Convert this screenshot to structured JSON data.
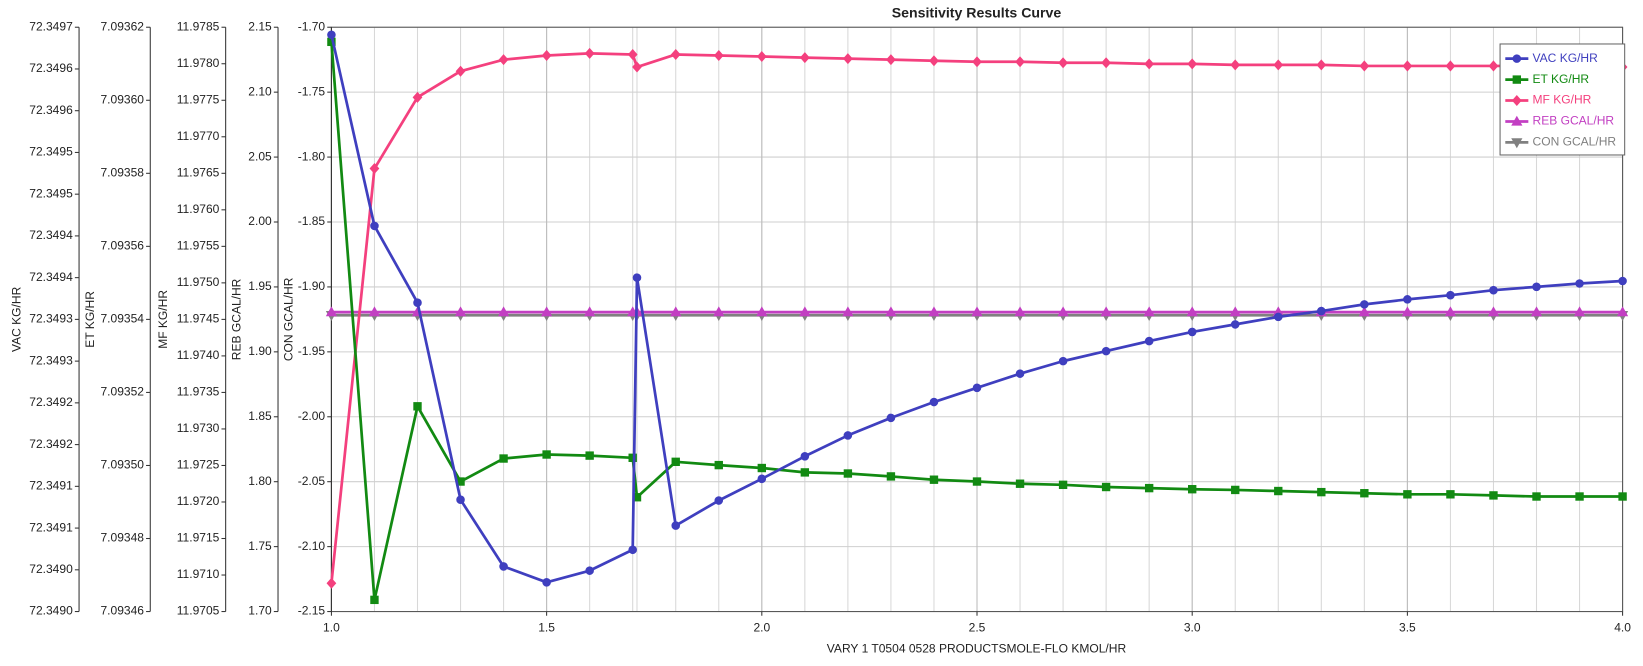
{
  "chart_data": {
    "type": "line",
    "title": "Sensitivity Results Curve",
    "xlabel": "VARY   1 T0504 0528 PRODUCTSMOLE-FLO KMOL/HR",
    "x": [
      1,
      1.1,
      1.2,
      1.3,
      1.4,
      1.5,
      1.6,
      1.7,
      1.71,
      1.8,
      1.9,
      2,
      2.1,
      2.2,
      2.3,
      2.4,
      2.5,
      2.6,
      2.7,
      2.8,
      2.9,
      3,
      3.1,
      3.2,
      3.3,
      3.4,
      3.5,
      3.6,
      3.7,
      3.8,
      3.9,
      4
    ],
    "xlim": [
      1,
      4
    ],
    "xticks": [
      {
        "value": 1,
        "label": "1.0"
      },
      1.5,
      {
        "value": 2,
        "label": "2.0"
      },
      2.5,
      {
        "value": 3,
        "label": "3.0"
      },
      3.5,
      {
        "value": 4,
        "label": "4.0"
      }
    ],
    "grid": true,
    "legend": "upper right",
    "series": [
      {
        "name": "VAC KG/HR",
        "color": "#3f3fbf",
        "marker": "circle",
        "ylim": [
          72.349,
          72.3497
        ],
        "yticks": [
          {
            "value": 72.349,
            "label": "72.3490"
          },
          {
            "value": 72.34905,
            "label": "72.3490"
          },
          {
            "value": 72.3491,
            "label": "72.3491"
          },
          {
            "value": 72.34915,
            "label": "72.3491"
          },
          {
            "value": 72.3492,
            "label": "72.3492"
          },
          {
            "value": 72.34925,
            "label": "72.3492"
          },
          {
            "value": 72.3493,
            "label": "72.3493"
          },
          {
            "value": 72.34935,
            "label": "72.3493"
          },
          {
            "value": 72.3494,
            "label": "72.3494"
          },
          {
            "value": 72.34945,
            "label": "72.3494"
          },
          {
            "value": 72.3495,
            "label": "72.3495"
          },
          {
            "value": 72.34955,
            "label": "72.3495"
          },
          {
            "value": 72.3496,
            "label": "72.3496"
          },
          {
            "value": 72.34965,
            "label": "72.3496"
          },
          {
            "value": 72.3497,
            "label": "72.3497"
          }
        ],
        "values": [
          72.349691,
          72.349462,
          72.34937,
          72.349134,
          72.349054,
          72.349035,
          72.349049,
          72.349074,
          72.3494,
          72.349103,
          72.349133,
          72.349159,
          72.349186,
          72.349211,
          72.349232,
          72.349251,
          72.349268,
          72.349285,
          72.3493,
          72.349312,
          72.349324,
          72.349335,
          72.349344,
          72.349353,
          72.34936,
          72.349368,
          72.349374,
          72.349379,
          72.349385,
          72.349389,
          72.349393,
          72.349396
        ]
      },
      {
        "name": "ET KG/HR",
        "color": "#128a12",
        "marker": "square",
        "ylim": [
          7.09346,
          7.09362
        ],
        "yticks": [
          7.09346,
          7.09348,
          {
            "value": 7.0935,
            "label": "7.09350"
          },
          7.09352,
          7.09354,
          7.09356,
          7.09358,
          {
            "value": 7.0936,
            "label": "7.09360"
          },
          7.09362
        ],
        "values": [
          7.093616,
          7.0934632,
          7.0935162,
          7.0934956,
          7.0935019,
          7.093503,
          7.0935027,
          7.0935021,
          7.0934913,
          7.093501,
          7.0935001,
          7.0934993,
          7.0934981,
          7.0934978,
          7.093497,
          7.0934961,
          7.0934956,
          7.093495,
          7.0934947,
          7.0934941,
          7.0934938,
          7.0934935,
          7.0934933,
          7.093493,
          7.0934927,
          7.0934924,
          7.0934921,
          7.0934921,
          7.0934918,
          7.0934915,
          7.0934915,
          7.0934915
        ]
      },
      {
        "name": "MF KG/HR",
        "color": "#f4407e",
        "marker": "diamond",
        "ylim": [
          11.9705,
          11.9785
        ],
        "yticks": [
          11.9705,
          {
            "value": 11.971,
            "label": "11.9710"
          },
          11.9715,
          {
            "value": 11.972,
            "label": "11.9720"
          },
          11.9725,
          {
            "value": 11.973,
            "label": "11.9730"
          },
          11.9735,
          {
            "value": 11.974,
            "label": "11.9740"
          },
          11.9745,
          {
            "value": 11.975,
            "label": "11.9750"
          },
          11.9755,
          {
            "value": 11.976,
            "label": "11.9760"
          },
          11.9765,
          {
            "value": 11.977,
            "label": "11.9770"
          },
          11.9775,
          {
            "value": 11.978,
            "label": "11.9780"
          },
          11.9785
        ],
        "values": [
          11.970887,
          11.976565,
          11.97754,
          11.977898,
          11.978056,
          11.978113,
          11.978142,
          11.978127,
          11.977955,
          11.978127,
          11.978113,
          11.978099,
          11.978084,
          11.97807,
          11.978056,
          11.978041,
          11.978027,
          11.978027,
          11.978013,
          11.978013,
          11.977998,
          11.977998,
          11.977984,
          11.977984,
          11.977984,
          11.97797,
          11.97797,
          11.97797,
          11.97797,
          11.97797,
          11.97797,
          11.977955
        ]
      },
      {
        "name": "REB GCAL/HR",
        "color": "#c23fc2",
        "marker": "triangle-up",
        "ylim": [
          1.7,
          2.15
        ],
        "yticks": [
          {
            "value": 1.7,
            "label": "1.70"
          },
          1.75,
          {
            "value": 1.8,
            "label": "1.80"
          },
          1.85,
          {
            "value": 1.9,
            "label": "1.90"
          },
          1.95,
          {
            "value": 2,
            "label": "2.00"
          },
          2.05,
          {
            "value": 2.1,
            "label": "2.10"
          },
          2.15
        ],
        "values": [
          1.9306,
          1.9306,
          1.9306,
          1.9306,
          1.9306,
          1.9306,
          1.9306,
          1.9306,
          1.9306,
          1.9306,
          1.9306,
          1.9306,
          1.9306,
          1.9306,
          1.9306,
          1.9306,
          1.9306,
          1.9306,
          1.9306,
          1.9306,
          1.9306,
          1.9306,
          1.9306,
          1.9306,
          1.9306,
          1.9306,
          1.9306,
          1.9306,
          1.9306,
          1.9306,
          1.9306,
          1.9306
        ]
      },
      {
        "name": "CON GCAL/HR",
        "color": "#808080",
        "marker": "triangle-down",
        "ylim": [
          -2.15,
          -1.7
        ],
        "yticks": [
          -2.15,
          {
            "value": -2.1,
            "label": "-2.10"
          },
          -2.05,
          {
            "value": -2,
            "label": "-2.00"
          },
          -1.95,
          {
            "value": -1.9,
            "label": "-1.90"
          },
          -1.85,
          {
            "value": -1.8,
            "label": "-1.80"
          },
          -1.75,
          {
            "value": -1.7,
            "label": "-1.70"
          }
        ],
        "values": [
          -1.9218,
          -1.9218,
          -1.9218,
          -1.9218,
          -1.9218,
          -1.9218,
          -1.9218,
          -1.9218,
          -1.9218,
          -1.9218,
          -1.9218,
          -1.9218,
          -1.9218,
          -1.9218,
          -1.9218,
          -1.9218,
          -1.9218,
          -1.9218,
          -1.9218,
          -1.9218,
          -1.9218,
          -1.9218,
          -1.9218,
          -1.9218,
          -1.9218,
          -1.9218,
          -1.9218,
          -1.9218,
          -1.9218,
          -1.9218,
          -1.9218,
          -1.9218
        ]
      }
    ]
  }
}
